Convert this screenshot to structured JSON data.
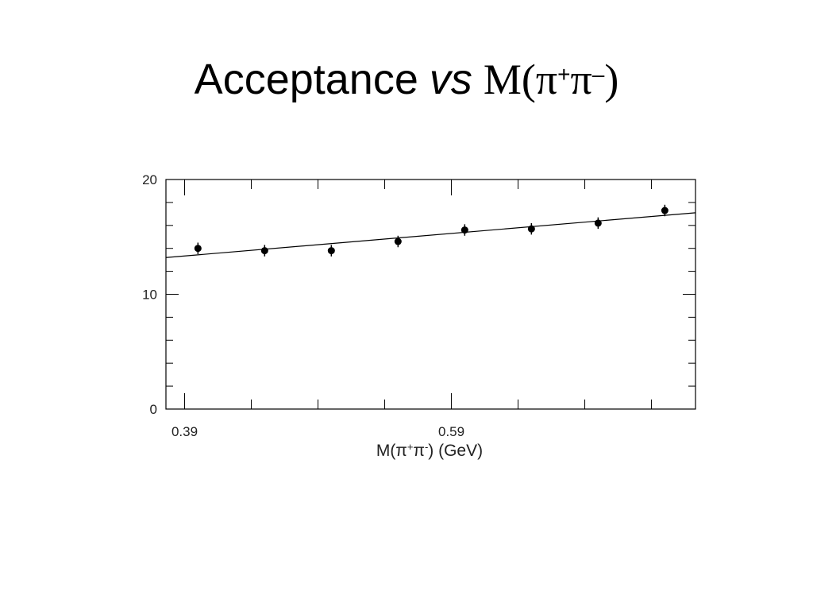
{
  "chart_data": {
    "type": "scatter",
    "title_parts": [
      "Acceptance",
      "vs",
      "M(π",
      "+",
      "π",
      "–",
      ")"
    ],
    "x_label_parts": [
      "M(π",
      "+",
      "π",
      "-",
      ") (GeV)"
    ],
    "x": [
      0.4,
      0.45,
      0.5,
      0.55,
      0.6,
      0.65,
      0.7,
      0.75
    ],
    "values": [
      14.0,
      13.8,
      13.8,
      14.6,
      15.6,
      15.7,
      16.2,
      17.3
    ],
    "errors": [
      0.5,
      0.5,
      0.5,
      0.5,
      0.5,
      0.5,
      0.5,
      0.5
    ],
    "color": "#000000",
    "fit": {
      "x": [
        0.376,
        0.773
      ],
      "y": [
        13.2,
        17.1
      ]
    },
    "xlim": [
      0.376,
      0.773
    ],
    "ylim": [
      0,
      20
    ],
    "xticks": [
      0.39,
      0.59
    ],
    "yticks": [
      0,
      10,
      20
    ],
    "xminor_ticks": [
      0.44,
      0.49,
      0.54,
      0.64,
      0.69,
      0.74
    ],
    "yminor_ticks": [
      2,
      4,
      6,
      8,
      12,
      14,
      16,
      18
    ]
  }
}
